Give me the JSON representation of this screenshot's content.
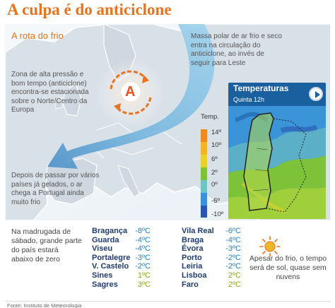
{
  "title": "A culpa é do anticiclone",
  "map": {
    "subtitle": "A rota do frio",
    "anticyclone_letter": "A",
    "note_polar": "Massa polar de ar frio e seco entra na circulação do anticiclone, ao invés de seguir para Leste",
    "note_pressure": "Zona de alta pressão e bom tempo (anticiclone) encontra-se estacionada sobre o Norte/Centro da Europa",
    "note_portugal": "Depois de passar por vários países já gelados, o ar chega a Portugal ainda muito frio"
  },
  "temperatures_panel": {
    "title": "Temperaturas",
    "subtitle": "Quinta 12h",
    "legend_title": "Temp.",
    "legend_labels": [
      "14º",
      "10º",
      "6º",
      "2º",
      "0º",
      "-6º",
      "-10º"
    ],
    "colors": {
      "warm": "#f08a1e",
      "mid": "#e6d22a",
      "green": "#7ec23a",
      "cold": "#3d8fd6",
      "deep_cold": "#2a56b0"
    }
  },
  "summary_left": "Na madrugada de sábado, grande parte do país estará abaixo de zero",
  "cities_col1": [
    {
      "name": "Bragança",
      "temp": "-8ºC"
    },
    {
      "name": "Guarda",
      "temp": "-4ºC"
    },
    {
      "name": "Viseu",
      "temp": "-4ºC"
    },
    {
      "name": "Portalegre",
      "temp": "-3ºC"
    },
    {
      "name": "V. Castelo",
      "temp": "-2ºC"
    },
    {
      "name": "Sines",
      "temp": "1ºC"
    },
    {
      "name": "Sagres",
      "temp": "3ºC"
    }
  ],
  "cities_col2": [
    {
      "name": "Vila Real",
      "temp": "-6ºC"
    },
    {
      "name": "Braga",
      "temp": "-4ºC"
    },
    {
      "name": "Évora",
      "temp": "-3ºC"
    },
    {
      "name": "Porto",
      "temp": "-2ºC"
    },
    {
      "name": "Leiria",
      "temp": "-2ºC"
    },
    {
      "name": "Lisboa",
      "temp": "2ºC"
    },
    {
      "name": "Faro",
      "temp": "2ºC"
    }
  ],
  "summary_right": "Apesar do frio, o tempo será de sol, quase sem nuvens",
  "footer": "Fonte: Instituto de Meteorologia",
  "icons": [
    "sun-icon",
    "play-icon",
    "anticyclone-icon",
    "arrow-icon"
  ]
}
